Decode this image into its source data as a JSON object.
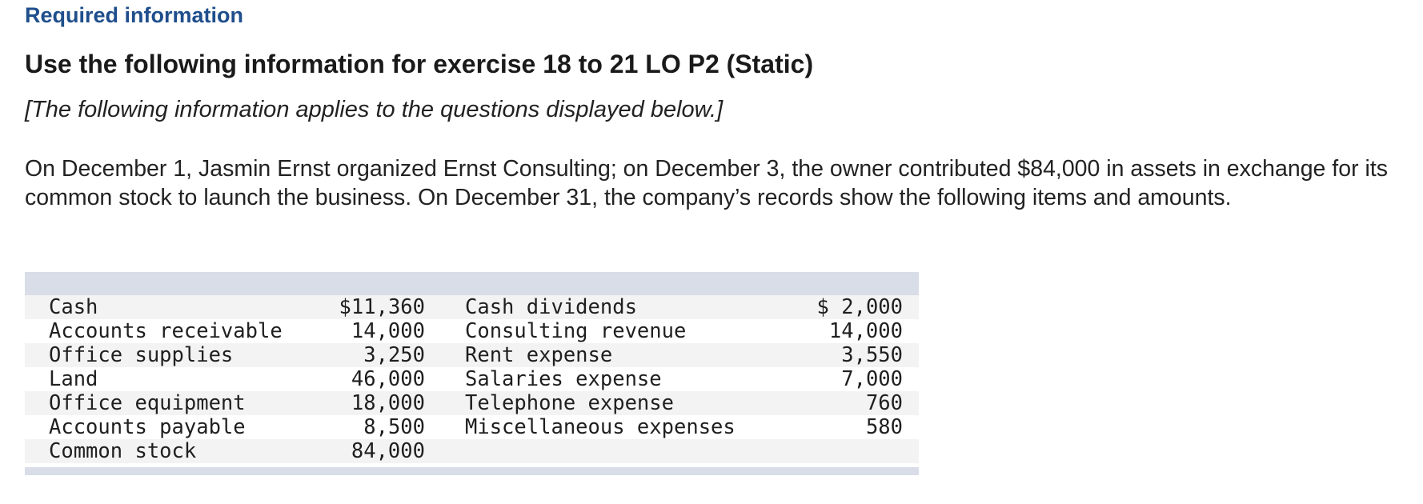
{
  "header": {
    "required": "Required information",
    "heading": "Use the following information for exercise 18 to 21 LO P2 (Static)",
    "note": "[The following information applies to the questions displayed below.]"
  },
  "body": {
    "paragraph": "On December 1, Jasmin Ernst organized Ernst Consulting; on December 3, the owner contributed $84,000 in assets in exchange for its common stock to launch the business. On December 31, the company’s records show the following items and amounts."
  },
  "table": {
    "rows": [
      {
        "left_label": "Cash",
        "left_amount": "$11,360",
        "right_label": "Cash dividends",
        "right_amount": "$ 2,000"
      },
      {
        "left_label": "Accounts receivable",
        "left_amount": "14,000",
        "right_label": "Consulting revenue",
        "right_amount": "14,000"
      },
      {
        "left_label": "Office supplies",
        "left_amount": "3,250",
        "right_label": "Rent expense",
        "right_amount": "3,550"
      },
      {
        "left_label": "Land",
        "left_amount": "46,000",
        "right_label": "Salaries expense",
        "right_amount": "7,000"
      },
      {
        "left_label": "Office equipment",
        "left_amount": "18,000",
        "right_label": "Telephone expense",
        "right_amount": "760"
      },
      {
        "left_label": "Accounts payable",
        "left_amount": "8,500",
        "right_label": "Miscellaneous expenses",
        "right_amount": "580"
      },
      {
        "left_label": "Common stock",
        "left_amount": "84,000",
        "right_label": "",
        "right_amount": ""
      }
    ]
  },
  "colors": {
    "required_link": "#1f4e8c",
    "band": "#d8dde8",
    "row_shade": "#f3f3f3"
  }
}
